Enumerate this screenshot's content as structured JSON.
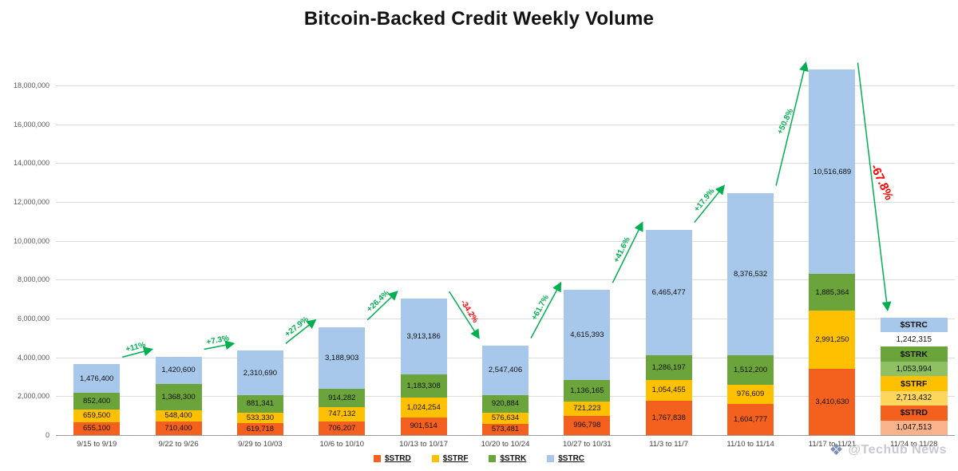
{
  "chart_data": {
    "type": "bar",
    "stacked": true,
    "title": "Bitcoin-Backed Credit Weekly Volume",
    "grid": true,
    "legend_position": "bottom",
    "categories": [
      "9/15 to 9/19",
      "9/22 to 9/26",
      "9/29 to 10/03",
      "10/6 to 10/10",
      "10/13 to 10/17",
      "10/20 to 10/24",
      "10/27 to 10/31",
      "11/3 to 11/7",
      "11/10 to 11/14",
      "11/17 to 11/21",
      "11/24 to 11/28"
    ],
    "series": [
      {
        "name": "$STRD",
        "color": "#F4611E",
        "values": [
          655100,
          710400,
          619718,
          706207,
          901514,
          573481,
          996798,
          1767838,
          1604777,
          3410630,
          1047513
        ]
      },
      {
        "name": "$STRF",
        "color": "#FFC000",
        "values": [
          659500,
          548400,
          533330,
          747132,
          1024254,
          576634,
          721223,
          1054455,
          976609,
          2991250,
          2713432
        ]
      },
      {
        "name": "$STRK",
        "color": "#6BA43A",
        "values": [
          852400,
          1368300,
          881341,
          914282,
          1183308,
          920884,
          1136165,
          1286197,
          1512200,
          1885364,
          1053994
        ]
      },
      {
        "name": "$STRC",
        "color": "#A8C8EB",
        "values": [
          1476400,
          1420600,
          2310690,
          3188903,
          3913186,
          2547406,
          4615393,
          6465477,
          8376532,
          10516689,
          1242315
        ]
      }
    ],
    "y_axis": {
      "min": 0,
      "max": 18000000,
      "step": 2000000,
      "tick_labels": [
        "0",
        "2,000,000",
        "4,000,000",
        "6,000,000",
        "8,000,000",
        "10,000,000",
        "12,000,000",
        "14,000,000",
        "16,000,000",
        "18,000,000"
      ]
    },
    "growth_annotations": [
      {
        "label": "+11%"
      },
      {
        "label": "+7.3%"
      },
      {
        "label": "+27.9%"
      },
      {
        "label": "+26.4%"
      },
      {
        "label": "-34.2%"
      },
      {
        "label": "+61.7%"
      },
      {
        "label": "+41.6%"
      },
      {
        "label": "+17.9%"
      },
      {
        "label": "+50.8%"
      },
      {
        "label": "-67.8%",
        "emphasis": true
      }
    ],
    "annotation_colors": {
      "positive": "#00B050",
      "negative": "#FF0000",
      "arrow": "#00B050"
    },
    "last_bar_callouts": [
      {
        "ticker": "$STRC",
        "value": "1,242,315",
        "ticker_bg": "#A8C8EB",
        "value_bg": "#FFFFFF"
      },
      {
        "ticker": "$STRK",
        "value": "1,053,994",
        "ticker_bg": "#6BA43A",
        "value_bg": "#8FC063"
      },
      {
        "ticker": "$STRF",
        "value": "2,713,432",
        "ticker_bg": "#FFC000",
        "value_bg": "#FFD65C"
      },
      {
        "ticker": "$STRD",
        "value": "1,047,513",
        "ticker_bg": "#F4611E",
        "value_bg": "#F9B28A"
      }
    ]
  },
  "watermark": {
    "text": "@Techub News",
    "icon": "diamond-logo"
  }
}
